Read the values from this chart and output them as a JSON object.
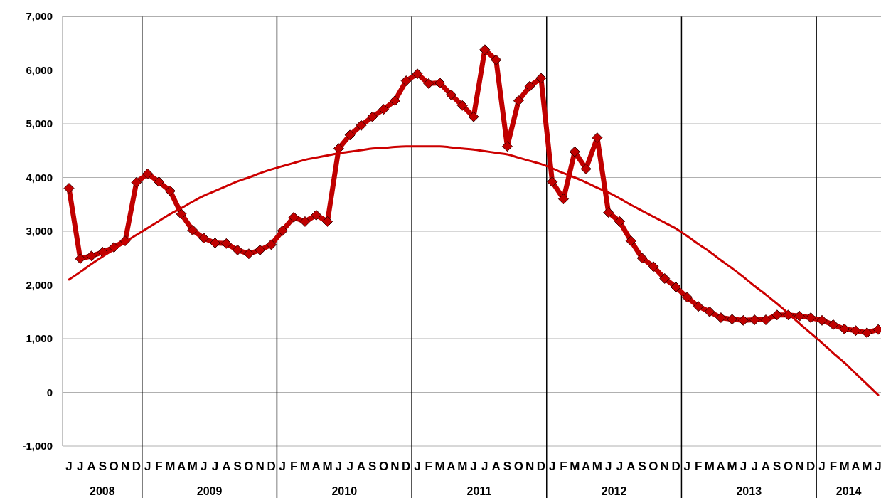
{
  "chart_data": {
    "type": "line",
    "categories": [
      "J",
      "J",
      "A",
      "S",
      "O",
      "N",
      "D",
      "J",
      "F",
      "M",
      "A",
      "M",
      "J",
      "J",
      "A",
      "S",
      "O",
      "N",
      "D",
      "J",
      "F",
      "M",
      "A",
      "M",
      "J",
      "J",
      "A",
      "S",
      "O",
      "N",
      "D",
      "J",
      "F",
      "M",
      "A",
      "M",
      "J",
      "J",
      "A",
      "S",
      "O",
      "N",
      "D",
      "J",
      "F",
      "M",
      "A",
      "M",
      "J",
      "J",
      "A",
      "S",
      "O",
      "N",
      "D",
      "J",
      "F",
      "M",
      "A",
      "M",
      "J",
      "J",
      "A",
      "S",
      "O",
      "N",
      "D",
      "J",
      "F",
      "M",
      "A",
      "M",
      "J"
    ],
    "series": [
      {
        "color": "#c00000",
        "marker": "diamond",
        "values": [
          3800,
          2490,
          2540,
          2610,
          2700,
          2820,
          3910,
          4070,
          3920,
          3750,
          3320,
          3020,
          2870,
          2780,
          2770,
          2650,
          2580,
          2650,
          2750,
          3010,
          3260,
          3180,
          3300,
          3180,
          4540,
          4790,
          4970,
          5130,
          5270,
          5430,
          5800,
          5930,
          5750,
          5760,
          5540,
          5340,
          5130,
          6380,
          6190,
          4580,
          5430,
          5700,
          5850,
          3920,
          3600,
          4480,
          4160,
          4740,
          3350,
          3180,
          2820,
          2500,
          2340,
          2120,
          1960,
          1770,
          1600,
          1500,
          1390,
          1360,
          1340,
          1350,
          1350,
          1440,
          1440,
          1420,
          1390,
          1340,
          1260,
          1180,
          1150,
          1110,
          1170
        ]
      },
      {
        "type": "line",
        "color": "#cc0000",
        "marker": "none",
        "values": [
          2100,
          2240,
          2390,
          2530,
          2660,
          2800,
          2930,
          3060,
          3190,
          3320,
          3430,
          3550,
          3660,
          3750,
          3840,
          3930,
          4000,
          4080,
          4150,
          4210,
          4270,
          4330,
          4370,
          4410,
          4450,
          4480,
          4510,
          4540,
          4550,
          4570,
          4580,
          4580,
          4580,
          4580,
          4560,
          4540,
          4520,
          4490,
          4460,
          4430,
          4370,
          4310,
          4250,
          4170,
          4080,
          4000,
          3910,
          3810,
          3720,
          3610,
          3490,
          3380,
          3270,
          3160,
          3050,
          2910,
          2760,
          2620,
          2460,
          2310,
          2150,
          1980,
          1820,
          1650,
          1470,
          1280,
          1100,
          920,
          730,
          550,
          350,
          150,
          -50
        ]
      }
    ],
    "ylim": [
      -1000,
      7000
    ],
    "yticks": [
      {
        "value": -1000,
        "label": "-1,000"
      },
      0,
      {
        "value": 1000,
        "label": "1,000"
      },
      {
        "value": 2000,
        "label": "2,000"
      },
      {
        "value": 3000,
        "label": "3,000"
      },
      {
        "value": 4000,
        "label": "4,000"
      },
      {
        "value": 5000,
        "label": "5,000"
      },
      {
        "value": 6000,
        "label": "6,000"
      },
      {
        "value": 7000,
        "label": "7,000"
      }
    ],
    "grid": "y",
    "annotations": [
      "2008",
      "2009",
      "2010",
      "2011",
      "2012",
      "2013",
      "2014"
    ]
  }
}
